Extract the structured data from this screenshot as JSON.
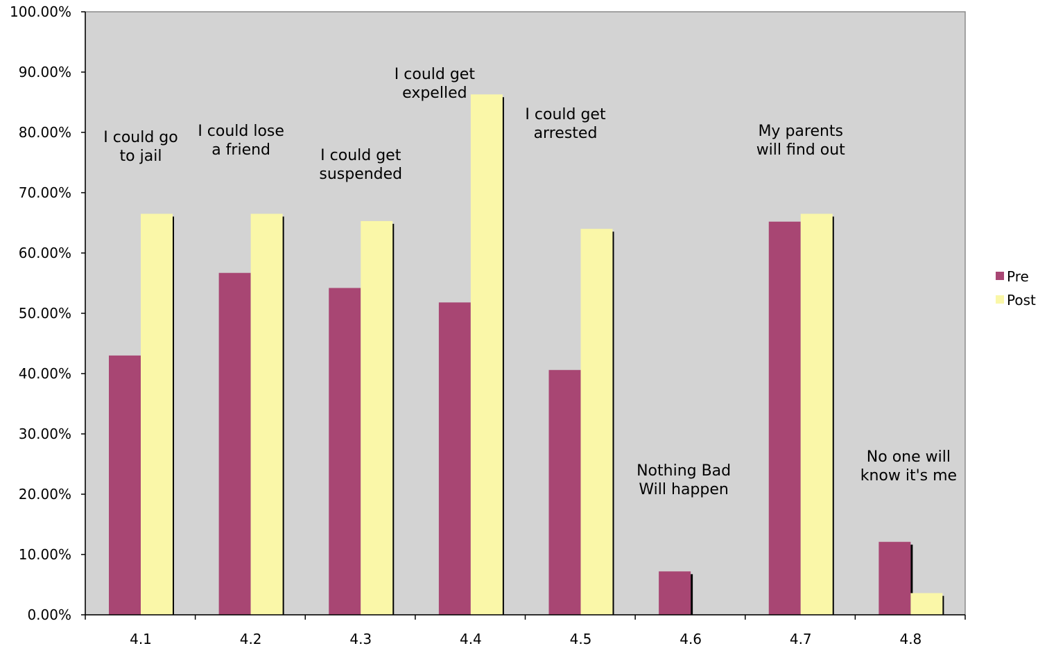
{
  "chart_data": {
    "type": "bar",
    "categories": [
      "4.1",
      "4.2",
      "4.3",
      "4.4",
      "4.5",
      "4.6",
      "4.7",
      "4.8"
    ],
    "series": [
      {
        "name": "Pre",
        "color": "#a84673",
        "values": [
          43.0,
          56.7,
          54.2,
          51.8,
          40.6,
          7.2,
          65.2,
          12.1
        ]
      },
      {
        "name": "Post",
        "color": "#faf7a8",
        "values": [
          66.5,
          66.5,
          65.3,
          86.3,
          64.0,
          0,
          66.5,
          3.6
        ]
      }
    ],
    "annotations": [
      {
        "category": "4.1",
        "lines": [
          "I could go",
          "to jail"
        ]
      },
      {
        "category": "4.2",
        "lines": [
          "I could lose",
          "a friend"
        ]
      },
      {
        "category": "4.3",
        "lines": [
          "I could get",
          "suspended"
        ]
      },
      {
        "category": "4.4",
        "lines": [
          "I could get",
          "expelled"
        ]
      },
      {
        "category": "4.5",
        "lines": [
          "I could get",
          "arrested"
        ]
      },
      {
        "category": "4.6",
        "lines": [
          "Nothing Bad",
          "Will happen"
        ]
      },
      {
        "category": "4.7",
        "lines": [
          "My parents",
          "will find out"
        ]
      },
      {
        "category": "4.8",
        "lines": [
          "No one will",
          "know it's me"
        ]
      }
    ],
    "y_ticks": [
      "0.00%",
      "10.00%",
      "20.00%",
      "30.00%",
      "40.00%",
      "50.00%",
      "60.00%",
      "70.00%",
      "80.00%",
      "90.00%",
      "100.00%"
    ],
    "ylim": [
      0,
      100
    ],
    "title": "",
    "xlabel": "",
    "ylabel": "",
    "legend_position": "right",
    "plot_background": "#d3d3d3",
    "grid": false
  }
}
